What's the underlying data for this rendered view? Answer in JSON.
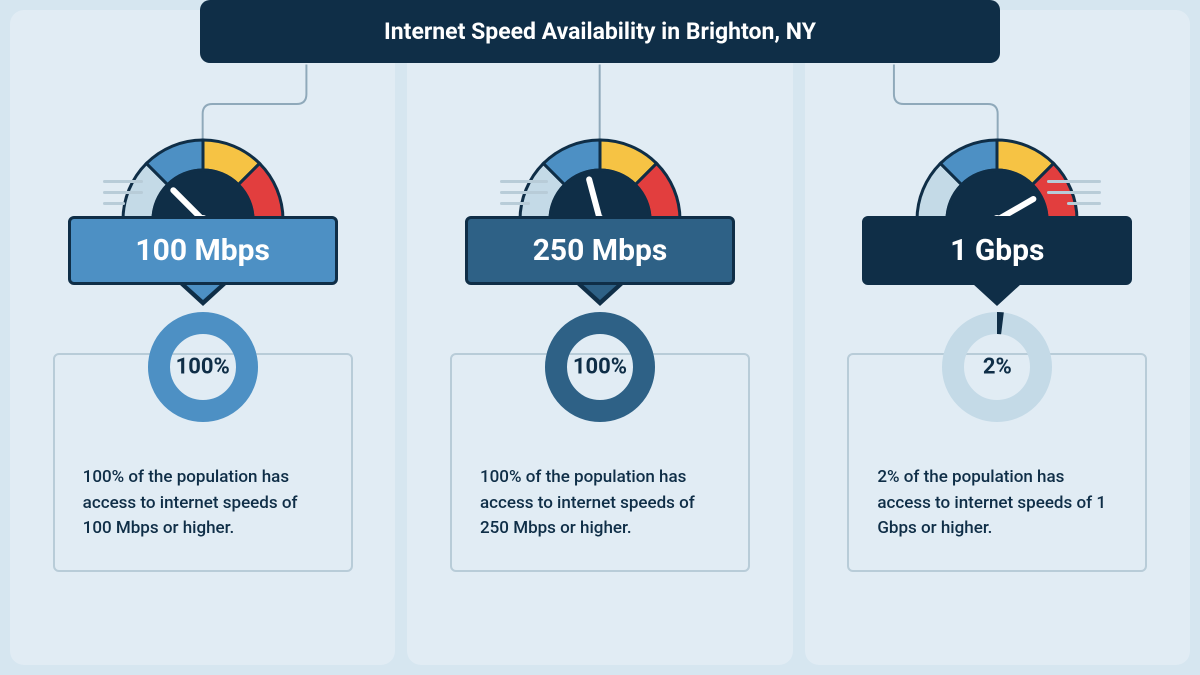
{
  "title": "Internet Speed Availability in Brighton, NY",
  "background_color": "#d6e6f0",
  "panel_background": "#e1ecf4",
  "title_bar_bg": "#0f2e47",
  "connector_color": "#8fa9ba",
  "gauge_colors": {
    "seg1": "#c4dae7",
    "seg2": "#4d90c4",
    "seg3": "#f6c344",
    "seg4": "#e23e3e",
    "center": "#0f2e47",
    "needle": "#ffffff",
    "outline": "#0f2e47"
  },
  "tiers": [
    {
      "speed_label": "100 Mbps",
      "box_bg": "#4d90c4",
      "needle_angle": -45,
      "speed_lines_side": "left",
      "speed_lines_widths": [
        40,
        40,
        22
      ],
      "percent": 100,
      "percent_label": "100%",
      "donut_stroke": "#4d90c4",
      "donut_track": "#c4dae7",
      "description": "100% of the population has access to internet speeds of 100 Mbps or higher."
    },
    {
      "speed_label": "250 Mbps",
      "box_bg": "#2e6186",
      "needle_angle": -15,
      "speed_lines_side": "left",
      "speed_lines_widths": [
        48,
        48,
        30
      ],
      "percent": 100,
      "percent_label": "100%",
      "donut_stroke": "#2e6186",
      "donut_track": "#c4dae7",
      "description": "100% of the population has access to internet speeds of 250 Mbps or higher."
    },
    {
      "speed_label": "1 Gbps",
      "box_bg": "#0f2e47",
      "needle_angle": 60,
      "speed_lines_side": "right",
      "speed_lines_widths": [
        54,
        54,
        34
      ],
      "percent": 2,
      "percent_label": "2%",
      "donut_stroke": "#0f2e47",
      "donut_track": "#c4dae7",
      "description": "2% of the population has access to internet speeds of 1 Gbps or higher."
    }
  ]
}
